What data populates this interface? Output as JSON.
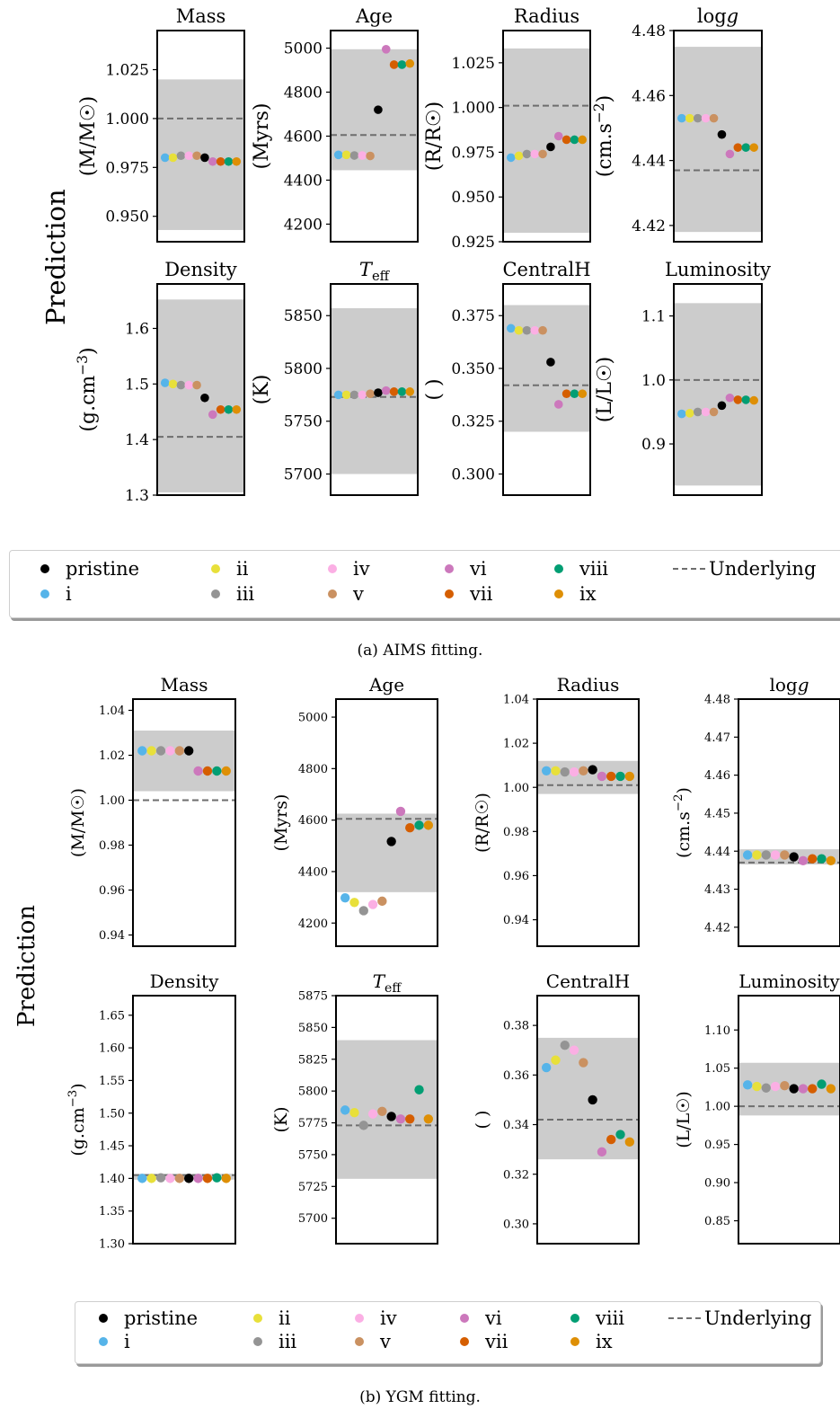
{
  "figures": [
    {
      "caption": "(a) AIMS fitting.",
      "ylabel": "Prediction",
      "legend_title": "",
      "legend": [
        "pristine",
        "i",
        "ii",
        "iii",
        "iv",
        "v",
        "vi",
        "vii",
        "viii",
        "ix",
        "Underlying"
      ]
    },
    {
      "caption": "(b) YGM fitting.",
      "ylabel": "Prediction",
      "legend": [
        "pristine",
        "i",
        "ii",
        "iii",
        "iv",
        "v",
        "vi",
        "vii",
        "viii",
        "ix",
        "Underlying"
      ]
    }
  ],
  "colors": {
    "pristine": "#000000",
    "i": "#56b4e9",
    "ii": "#e8e03a",
    "iii": "#949494",
    "iv": "#fbafe4",
    "v": "#ca9161",
    "vi": "#cc78bc",
    "vii": "#d55e00",
    "viii": "#029e73",
    "ix": "#de8f05",
    "band": "#cccccc",
    "underlying": "#6e6e6e"
  },
  "chart_data": [
    {
      "figure": "a",
      "title": "Mass",
      "type": "scatter",
      "ylabel": "(M/M☉)",
      "ylim": [
        0.937,
        1.045
      ],
      "yticks": [
        0.95,
        0.975,
        1.0,
        1.025
      ],
      "tick_decimals": 3,
      "band": [
        0.943,
        1.02
      ],
      "underlying": 1.0,
      "series": [
        {
          "name": "i",
          "value": 0.98
        },
        {
          "name": "ii",
          "value": 0.98
        },
        {
          "name": "iii",
          "value": 0.981
        },
        {
          "name": "iv",
          "value": 0.981
        },
        {
          "name": "v",
          "value": 0.981
        },
        {
          "name": "pristine",
          "value": 0.98
        },
        {
          "name": "vi",
          "value": 0.978
        },
        {
          "name": "vii",
          "value": 0.978
        },
        {
          "name": "viii",
          "value": 0.978
        },
        {
          "name": "ix",
          "value": 0.978
        }
      ]
    },
    {
      "figure": "a",
      "title": "Age",
      "type": "scatter",
      "ylabel": "(Myrs)",
      "ylim": [
        4120,
        5080
      ],
      "yticks": [
        4200,
        4400,
        4600,
        4800,
        5000
      ],
      "tick_decimals": 0,
      "band": [
        4445,
        4995
      ],
      "underlying": 4605,
      "series": [
        {
          "name": "i",
          "value": 4515
        },
        {
          "name": "ii",
          "value": 4515
        },
        {
          "name": "iii",
          "value": 4512
        },
        {
          "name": "iv",
          "value": 4512
        },
        {
          "name": "v",
          "value": 4510
        },
        {
          "name": "pristine",
          "value": 4720
        },
        {
          "name": "vi",
          "value": 4995
        },
        {
          "name": "vii",
          "value": 4925
        },
        {
          "name": "viii",
          "value": 4925
        },
        {
          "name": "ix",
          "value": 4930
        }
      ]
    },
    {
      "figure": "a",
      "title": "Radius",
      "type": "scatter",
      "ylabel": "(R/R☉)",
      "ylim": [
        0.925,
        1.043
      ],
      "yticks": [
        0.925,
        0.95,
        0.975,
        1.0,
        1.025
      ],
      "tick_decimals": 3,
      "band": [
        0.93,
        1.033
      ],
      "underlying": 1.001,
      "series": [
        {
          "name": "i",
          "value": 0.972
        },
        {
          "name": "ii",
          "value": 0.973
        },
        {
          "name": "iii",
          "value": 0.974
        },
        {
          "name": "iv",
          "value": 0.974
        },
        {
          "name": "v",
          "value": 0.974
        },
        {
          "name": "pristine",
          "value": 0.978
        },
        {
          "name": "vi",
          "value": 0.984
        },
        {
          "name": "vii",
          "value": 0.982
        },
        {
          "name": "viii",
          "value": 0.982
        },
        {
          "name": "ix",
          "value": 0.982
        }
      ]
    },
    {
      "figure": "a",
      "title": "logg",
      "type": "scatter",
      "ylabel": "(cm.s−2)",
      "ylim": [
        4.415,
        4.48
      ],
      "yticks": [
        4.42,
        4.44,
        4.46,
        4.48
      ],
      "tick_decimals": 2,
      "band": [
        4.418,
        4.475
      ],
      "underlying": 4.437,
      "series": [
        {
          "name": "i",
          "value": 4.453
        },
        {
          "name": "ii",
          "value": 4.453
        },
        {
          "name": "iii",
          "value": 4.453
        },
        {
          "name": "iv",
          "value": 4.453
        },
        {
          "name": "v",
          "value": 4.453
        },
        {
          "name": "pristine",
          "value": 4.448
        },
        {
          "name": "vi",
          "value": 4.442
        },
        {
          "name": "vii",
          "value": 4.444
        },
        {
          "name": "viii",
          "value": 4.444
        },
        {
          "name": "ix",
          "value": 4.444
        }
      ]
    },
    {
      "figure": "a",
      "title": "Density",
      "type": "scatter",
      "ylabel": "(g.cm−3)",
      "ylim": [
        1.3,
        1.68
      ],
      "yticks": [
        1.3,
        1.4,
        1.5,
        1.6
      ],
      "tick_decimals": 1,
      "band": [
        1.305,
        1.652
      ],
      "underlying": 1.405,
      "series": [
        {
          "name": "i",
          "value": 1.502
        },
        {
          "name": "ii",
          "value": 1.5
        },
        {
          "name": "iii",
          "value": 1.498
        },
        {
          "name": "iv",
          "value": 1.498
        },
        {
          "name": "v",
          "value": 1.498
        },
        {
          "name": "pristine",
          "value": 1.475
        },
        {
          "name": "vi",
          "value": 1.445
        },
        {
          "name": "vii",
          "value": 1.454
        },
        {
          "name": "viii",
          "value": 1.454
        },
        {
          "name": "ix",
          "value": 1.454
        }
      ]
    },
    {
      "figure": "a",
      "title": "Teff",
      "type": "scatter",
      "ylabel": "(K)",
      "ylim": [
        5680,
        5880
      ],
      "yticks": [
        5700,
        5750,
        5800,
        5850
      ],
      "tick_decimals": 0,
      "band": [
        5700,
        5857
      ],
      "underlying": 5773,
      "series": [
        {
          "name": "i",
          "value": 5775
        },
        {
          "name": "ii",
          "value": 5775
        },
        {
          "name": "iii",
          "value": 5775
        },
        {
          "name": "iv",
          "value": 5775
        },
        {
          "name": "v",
          "value": 5776
        },
        {
          "name": "pristine",
          "value": 5777
        },
        {
          "name": "vi",
          "value": 5779
        },
        {
          "name": "vii",
          "value": 5778
        },
        {
          "name": "viii",
          "value": 5778
        },
        {
          "name": "ix",
          "value": 5778
        }
      ]
    },
    {
      "figure": "a",
      "title": "CentralH",
      "type": "scatter",
      "ylabel": "( )",
      "ylim": [
        0.29,
        0.39
      ],
      "yticks": [
        0.3,
        0.325,
        0.35,
        0.375
      ],
      "tick_decimals": 3,
      "band": [
        0.32,
        0.38
      ],
      "underlying": 0.342,
      "series": [
        {
          "name": "i",
          "value": 0.369
        },
        {
          "name": "ii",
          "value": 0.368
        },
        {
          "name": "iii",
          "value": 0.368
        },
        {
          "name": "iv",
          "value": 0.368
        },
        {
          "name": "v",
          "value": 0.368
        },
        {
          "name": "pristine",
          "value": 0.353
        },
        {
          "name": "vi",
          "value": 0.333
        },
        {
          "name": "vii",
          "value": 0.338
        },
        {
          "name": "viii",
          "value": 0.338
        },
        {
          "name": "ix",
          "value": 0.338
        }
      ]
    },
    {
      "figure": "a",
      "title": "Luminosity",
      "type": "scatter",
      "ylabel": "(L/L☉)",
      "ylim": [
        0.82,
        1.15
      ],
      "yticks": [
        0.9,
        1.0,
        1.1
      ],
      "tick_decimals": 1,
      "band": [
        0.835,
        1.12
      ],
      "underlying": 1.0,
      "series": [
        {
          "name": "i",
          "value": 0.947
        },
        {
          "name": "ii",
          "value": 0.948
        },
        {
          "name": "iii",
          "value": 0.95
        },
        {
          "name": "iv",
          "value": 0.95
        },
        {
          "name": "v",
          "value": 0.95
        },
        {
          "name": "pristine",
          "value": 0.96
        },
        {
          "name": "vi",
          "value": 0.972
        },
        {
          "name": "vii",
          "value": 0.969
        },
        {
          "name": "viii",
          "value": 0.969
        },
        {
          "name": "ix",
          "value": 0.968
        }
      ]
    },
    {
      "figure": "b",
      "title": "Mass",
      "type": "scatter",
      "ylabel": "(M/M☉)",
      "ylim": [
        0.935,
        1.045
      ],
      "yticks": [
        0.94,
        0.96,
        0.98,
        1.0,
        1.02,
        1.04
      ],
      "tick_decimals": 2,
      "band": [
        1.004,
        1.031
      ],
      "underlying": 1.0,
      "series": [
        {
          "name": "i",
          "value": 1.022
        },
        {
          "name": "ii",
          "value": 1.022
        },
        {
          "name": "iii",
          "value": 1.022
        },
        {
          "name": "iv",
          "value": 1.022
        },
        {
          "name": "v",
          "value": 1.022
        },
        {
          "name": "pristine",
          "value": 1.022
        },
        {
          "name": "vi",
          "value": 1.013
        },
        {
          "name": "vii",
          "value": 1.013
        },
        {
          "name": "viii",
          "value": 1.013
        },
        {
          "name": "ix",
          "value": 1.013
        }
      ]
    },
    {
      "figure": "b",
      "title": "Age",
      "type": "scatter",
      "ylabel": "(Myrs)",
      "ylim": [
        4110,
        5070
      ],
      "yticks": [
        4200,
        4400,
        4600,
        4800,
        5000
      ],
      "tick_decimals": 0,
      "band": [
        4320,
        4625
      ],
      "underlying": 4605,
      "series": [
        {
          "name": "i",
          "value": 4298
        },
        {
          "name": "ii",
          "value": 4280
        },
        {
          "name": "iii",
          "value": 4248
        },
        {
          "name": "iv",
          "value": 4272
        },
        {
          "name": "v",
          "value": 4285
        },
        {
          "name": "pristine",
          "value": 4517
        },
        {
          "name": "vi",
          "value": 4634
        },
        {
          "name": "vii",
          "value": 4570
        },
        {
          "name": "viii",
          "value": 4580
        },
        {
          "name": "ix",
          "value": 4580
        }
      ]
    },
    {
      "figure": "b",
      "title": "Radius",
      "type": "scatter",
      "ylabel": "(R/R☉)",
      "ylim": [
        0.928,
        1.04
      ],
      "yticks": [
        0.94,
        0.96,
        0.98,
        1.0,
        1.02,
        1.04
      ],
      "tick_decimals": 2,
      "band": [
        0.997,
        1.012
      ],
      "underlying": 1.001,
      "series": [
        {
          "name": "i",
          "value": 1.0075
        },
        {
          "name": "ii",
          "value": 1.0075
        },
        {
          "name": "iii",
          "value": 1.007
        },
        {
          "name": "iv",
          "value": 1.007
        },
        {
          "name": "v",
          "value": 1.0075
        },
        {
          "name": "pristine",
          "value": 1.008
        },
        {
          "name": "vi",
          "value": 1.005
        },
        {
          "name": "vii",
          "value": 1.005
        },
        {
          "name": "viii",
          "value": 1.005
        },
        {
          "name": "ix",
          "value": 1.005
        }
      ]
    },
    {
      "figure": "b",
      "title": "logg",
      "type": "scatter",
      "ylabel": "(cm.s−2)",
      "ylim": [
        4.415,
        4.48
      ],
      "yticks": [
        4.42,
        4.43,
        4.44,
        4.45,
        4.46,
        4.47,
        4.48
      ],
      "tick_decimals": 2,
      "band": [
        4.4365,
        4.4405
      ],
      "underlying": 4.437,
      "series": [
        {
          "name": "i",
          "value": 4.439
        },
        {
          "name": "ii",
          "value": 4.439
        },
        {
          "name": "iii",
          "value": 4.439
        },
        {
          "name": "iv",
          "value": 4.439
        },
        {
          "name": "v",
          "value": 4.439
        },
        {
          "name": "pristine",
          "value": 4.4385
        },
        {
          "name": "vi",
          "value": 4.4375
        },
        {
          "name": "vii",
          "value": 4.438
        },
        {
          "name": "viii",
          "value": 4.438
        },
        {
          "name": "ix",
          "value": 4.4375
        }
      ]
    },
    {
      "figure": "b",
      "title": "Density",
      "type": "scatter",
      "ylabel": "(g.cm−3)",
      "ylim": [
        1.3,
        1.68
      ],
      "yticks": [
        1.3,
        1.35,
        1.4,
        1.45,
        1.5,
        1.55,
        1.6,
        1.65
      ],
      "tick_decimals": 2,
      "band": [
        1.398,
        1.407
      ],
      "underlying": 1.405,
      "series": [
        {
          "name": "i",
          "value": 1.4
        },
        {
          "name": "ii",
          "value": 1.4
        },
        {
          "name": "iii",
          "value": 1.401
        },
        {
          "name": "iv",
          "value": 1.4
        },
        {
          "name": "v",
          "value": 1.4
        },
        {
          "name": "pristine",
          "value": 1.4
        },
        {
          "name": "vi",
          "value": 1.4
        },
        {
          "name": "vii",
          "value": 1.4
        },
        {
          "name": "viii",
          "value": 1.401
        },
        {
          "name": "ix",
          "value": 1.4
        }
      ]
    },
    {
      "figure": "b",
      "title": "Teff",
      "type": "scatter",
      "ylabel": "(K)",
      "ylim": [
        5680,
        5875
      ],
      "yticks": [
        5700,
        5725,
        5750,
        5775,
        5800,
        5825,
        5850,
        5875
      ],
      "tick_decimals": 0,
      "band": [
        5731,
        5840
      ],
      "underlying": 5773,
      "series": [
        {
          "name": "i",
          "value": 5785
        },
        {
          "name": "ii",
          "value": 5783
        },
        {
          "name": "iii",
          "value": 5773
        },
        {
          "name": "iv",
          "value": 5782
        },
        {
          "name": "v",
          "value": 5784
        },
        {
          "name": "pristine",
          "value": 5780
        },
        {
          "name": "vi",
          "value": 5778
        },
        {
          "name": "vii",
          "value": 5778
        },
        {
          "name": "viii",
          "value": 5801
        },
        {
          "name": "ix",
          "value": 5778
        }
      ]
    },
    {
      "figure": "b",
      "title": "CentralH",
      "type": "scatter",
      "ylabel": "( )",
      "ylim": [
        0.292,
        0.392
      ],
      "yticks": [
        0.3,
        0.32,
        0.34,
        0.36,
        0.38
      ],
      "tick_decimals": 2,
      "band": [
        0.326,
        0.375
      ],
      "underlying": 0.342,
      "series": [
        {
          "name": "i",
          "value": 0.363
        },
        {
          "name": "ii",
          "value": 0.366
        },
        {
          "name": "iii",
          "value": 0.372
        },
        {
          "name": "iv",
          "value": 0.37
        },
        {
          "name": "v",
          "value": 0.365
        },
        {
          "name": "pristine",
          "value": 0.35
        },
        {
          "name": "vi",
          "value": 0.329
        },
        {
          "name": "vii",
          "value": 0.334
        },
        {
          "name": "viii",
          "value": 0.336
        },
        {
          "name": "ix",
          "value": 0.333
        }
      ]
    },
    {
      "figure": "b",
      "title": "Luminosity",
      "type": "scatter",
      "ylabel": "(L/L☉)",
      "ylim": [
        0.82,
        1.145
      ],
      "yticks": [
        0.85,
        0.9,
        0.95,
        1.0,
        1.05,
        1.1
      ],
      "tick_decimals": 2,
      "band": [
        0.988,
        1.057
      ],
      "underlying": 1.0,
      "series": [
        {
          "name": "i",
          "value": 1.028
        },
        {
          "name": "ii",
          "value": 1.026
        },
        {
          "name": "iii",
          "value": 1.024
        },
        {
          "name": "iv",
          "value": 1.026
        },
        {
          "name": "v",
          "value": 1.027
        },
        {
          "name": "pristine",
          "value": 1.023
        },
        {
          "name": "vi",
          "value": 1.023
        },
        {
          "name": "vii",
          "value": 1.023
        },
        {
          "name": "viii",
          "value": 1.029
        },
        {
          "name": "ix",
          "value": 1.023
        }
      ]
    }
  ]
}
